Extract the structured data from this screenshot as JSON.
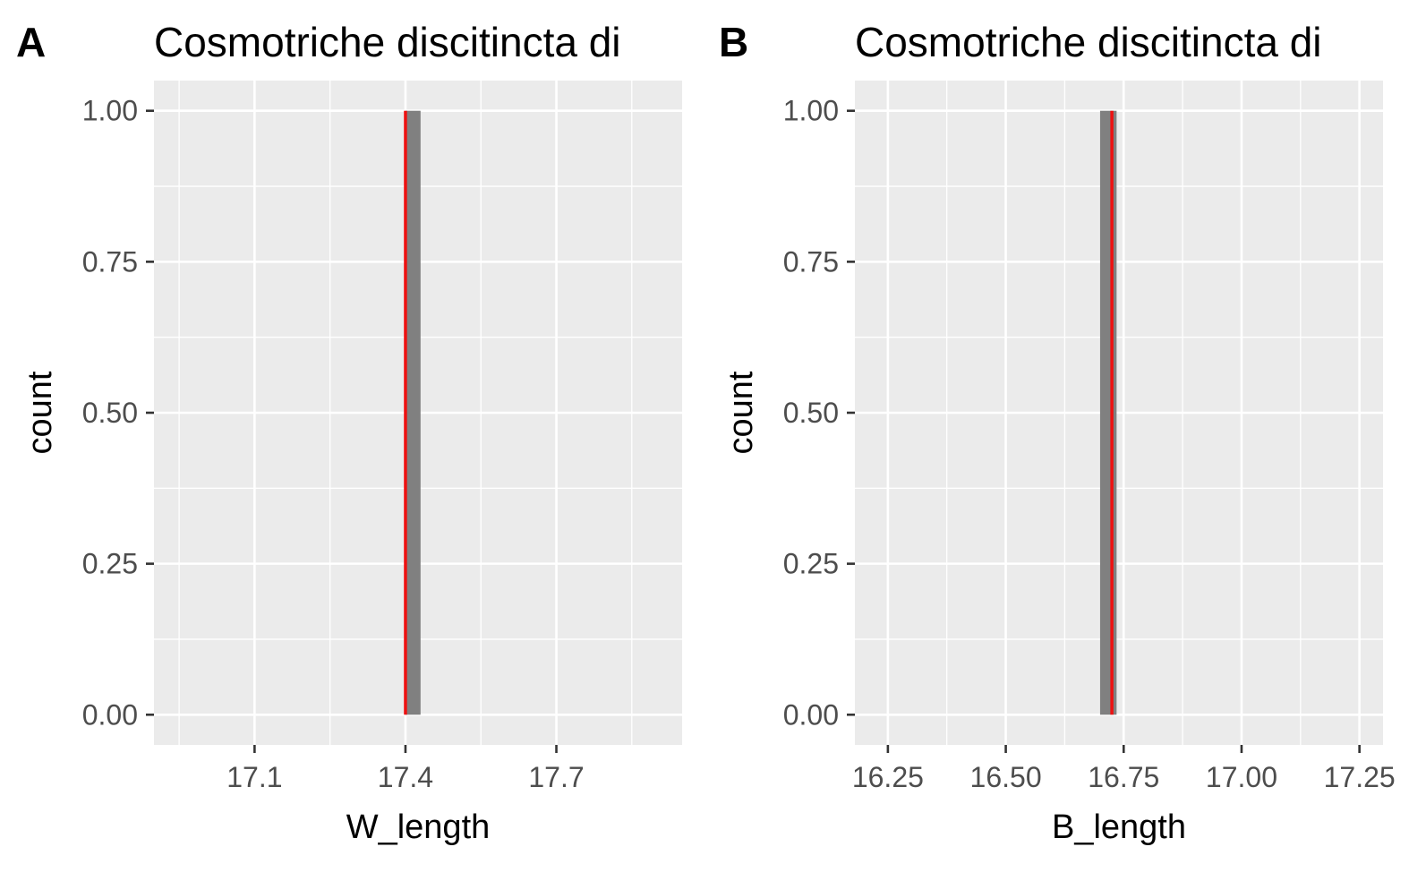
{
  "chart_data": [
    {
      "type": "histogram",
      "panel_tag": "A",
      "title": "Cosmotriche discitincta di",
      "xlabel": "W_length",
      "ylabel": "count",
      "xlim": [
        16.9,
        17.95
      ],
      "ylim": [
        -0.05,
        1.05
      ],
      "x_ticks": [
        {
          "value": 17.1,
          "label": "17.1"
        },
        {
          "value": 17.4,
          "label": "17.4"
        },
        {
          "value": 17.7,
          "label": "17.7"
        }
      ],
      "x_minor": [
        16.95,
        17.25,
        17.55,
        17.85
      ],
      "y_ticks": [
        {
          "value": 0,
          "label": "0.00"
        },
        {
          "value": 0.25,
          "label": "0.25"
        },
        {
          "value": 0.5,
          "label": "0.50"
        },
        {
          "value": 0.75,
          "label": "0.75"
        },
        {
          "value": 1,
          "label": "1.00"
        }
      ],
      "y_minor": [
        0.125,
        0.375,
        0.625,
        0.875
      ],
      "bins": [
        {
          "x0": 17.4,
          "x1": 17.43,
          "count": 1
        }
      ],
      "vline": {
        "x": 17.4,
        "color": "#ee1111"
      },
      "grid": true,
      "bar_color": "#808080",
      "panel_color": "#ebebeb"
    },
    {
      "type": "histogram",
      "panel_tag": "B",
      "title": "Cosmotriche discitincta di",
      "xlabel": "B_length",
      "ylabel": "count",
      "xlim": [
        16.18,
        17.3
      ],
      "ylim": [
        -0.05,
        1.05
      ],
      "x_ticks": [
        {
          "value": 16.25,
          "label": "16.25"
        },
        {
          "value": 16.5,
          "label": "16.50"
        },
        {
          "value": 16.75,
          "label": "16.75"
        },
        {
          "value": 17.0,
          "label": "17.00"
        },
        {
          "value": 17.25,
          "label": "17.25"
        }
      ],
      "x_minor": [
        16.375,
        16.625,
        16.875,
        17.125
      ],
      "y_ticks": [
        {
          "value": 0,
          "label": "0.00"
        },
        {
          "value": 0.25,
          "label": "0.25"
        },
        {
          "value": 0.5,
          "label": "0.50"
        },
        {
          "value": 0.75,
          "label": "0.75"
        },
        {
          "value": 1,
          "label": "1.00"
        }
      ],
      "y_minor": [
        0.125,
        0.375,
        0.625,
        0.875
      ],
      "bins": [
        {
          "x0": 16.7,
          "x1": 16.735,
          "count": 1
        }
      ],
      "vline": {
        "x": 16.725,
        "color": "#ee1111"
      },
      "grid": true,
      "bar_color": "#808080",
      "panel_color": "#ebebeb"
    }
  ]
}
